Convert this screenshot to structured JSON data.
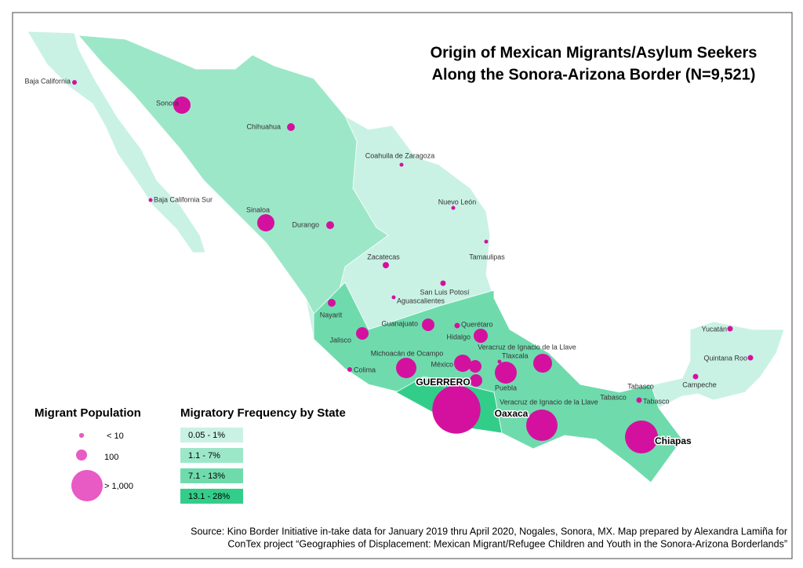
{
  "title": [
    "Origin of Mexican Migrants/Asylum Seekers",
    "Along the Sonora-Arizona Border  (N=9,521)"
  ],
  "marker_color": "#d4119e",
  "population_legend": {
    "title": "Migrant Population",
    "items": [
      {
        "value": 5,
        "label": "< 10"
      },
      {
        "value": 100,
        "label": "100"
      },
      {
        "value": 1300,
        "label": "> 1,000"
      }
    ],
    "color": "#e85ac4"
  },
  "frequency_legend": {
    "title": "Migratory Frequency by State",
    "classes": [
      {
        "label": "0.05 - 1%",
        "color": "#c9f2e5"
      },
      {
        "label": "1.1 - 7%",
        "color": "#9de7c9"
      },
      {
        "label": "7.1 - 13%",
        "color": "#6fdbad"
      },
      {
        "label": "13.1 - 28%",
        "color": "#33cd8a"
      }
    ]
  },
  "markers": [
    {
      "name": "Baja California",
      "population": 4
    },
    {
      "name": "Sonora",
      "population": 324
    },
    {
      "name": "Chihuahua",
      "population": 36
    },
    {
      "name": "Coahuila de Zaragoza",
      "population": 1
    },
    {
      "name": "Baja California Sur",
      "population": 1
    },
    {
      "name": "Nuevo León",
      "population": 1
    },
    {
      "name": "Sinaloa",
      "population": 324
    },
    {
      "name": "Durango",
      "population": 36
    },
    {
      "name": "Tamaulipas",
      "population": 1
    },
    {
      "name": "Zacatecas",
      "population": 16
    },
    {
      "name": "San Luis Potosí",
      "population": 9
    },
    {
      "name": "Aguascalientes",
      "population": 1
    },
    {
      "name": "Nayarit",
      "population": 36
    },
    {
      "name": "Guanajuato",
      "population": 144
    },
    {
      "name": "Querétaro",
      "population": 9
    },
    {
      "name": "Jalisco",
      "population": 144
    },
    {
      "name": "Hidalgo",
      "population": 196
    },
    {
      "name": "Michoacán de Ocampo",
      "population": 484
    },
    {
      "name": "México",
      "population": 324
    },
    {
      "name": null,
      "population": 144
    },
    {
      "name": "Tlaxcala",
      "population": 1
    },
    {
      "name": "Puebla",
      "population": 576
    },
    {
      "name": "Veracruz de Ignacio de la Llave",
      "population": 400
    },
    {
      "name": null,
      "population": 144
    },
    {
      "name": "Colima",
      "population": 4
    },
    {
      "name": "GUERRERO",
      "population": 3300
    },
    {
      "name": "Oaxaca",
      "population": 1296
    },
    {
      "name": "Chiapas",
      "population": 1444
    },
    {
      "name": "Tabasco",
      "population": 9
    },
    {
      "name": "Campeche",
      "population": 9
    },
    {
      "name": "Quintana Roo",
      "population": 9
    },
    {
      "name": "Yucatán",
      "population": 9
    }
  ],
  "place_labels": [
    "Veracruz de Ignacio de la Llave",
    "Tabasco",
    "Tabasco"
  ],
  "source": [
    "Source:  Kino Border Initiative in-take data for January 2019 thru April 2020, Nogales, Sonora, MX.  Map prepared by Alexandra Lamiña for",
    "ConTex project “Geographies of Displacement: Mexican Migrant/Refugee Children and Youth in the Sonora-Arizona Borderlands”"
  ]
}
